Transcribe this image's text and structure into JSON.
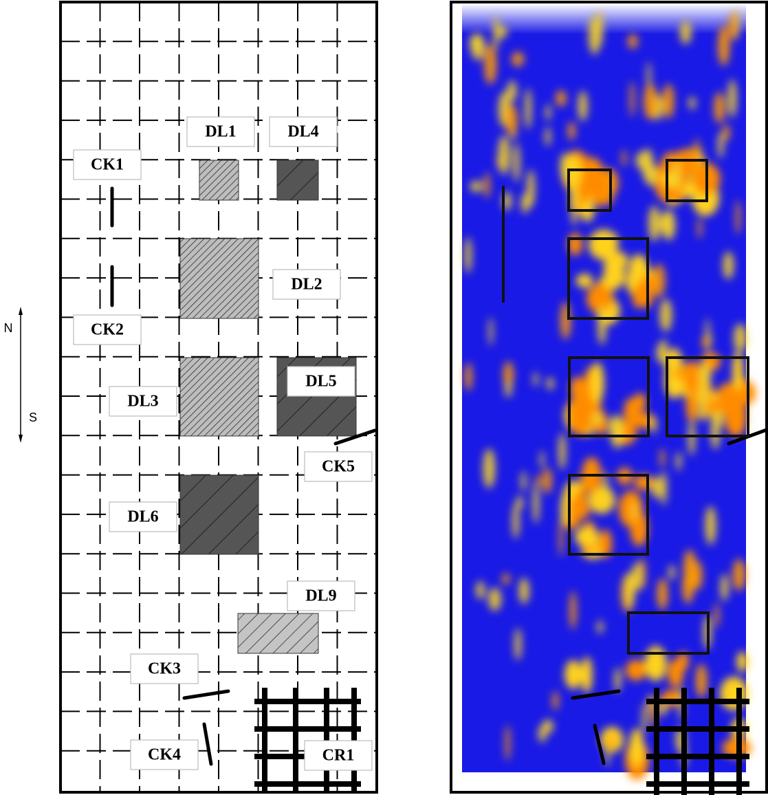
{
  "compass": {
    "north": "N",
    "south": "S"
  },
  "features": [
    {
      "label": "DL1"
    },
    {
      "label": "DL4"
    },
    {
      "label": "CK1"
    },
    {
      "label": "DL2"
    },
    {
      "label": "CK2"
    },
    {
      "label": "DL3"
    },
    {
      "label": "DL5"
    },
    {
      "label": "CK5"
    },
    {
      "label": "DL6"
    },
    {
      "label": "DL9"
    },
    {
      "label": "CK3"
    },
    {
      "label": "CK4"
    },
    {
      "label": "CR1"
    }
  ]
}
